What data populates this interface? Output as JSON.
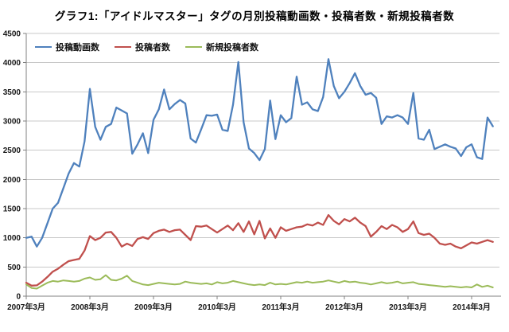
{
  "title": "グラフ1:「アイドルマスター」タグの月別投稿動画数・投稿者数・新規投稿者数",
  "colors": {
    "videos": "#4F81BD",
    "posters": "#C0504D",
    "new_posters": "#9BBB59",
    "grid": "#c8c8c8",
    "axis": "#808080",
    "text": "#171717"
  },
  "chart_data": {
    "type": "line",
    "title": "グラフ1:「アイドルマスター」タグの月別投稿動画数・投稿者数・新規投稿者数",
    "xlabel": "",
    "ylabel": "",
    "grid": true,
    "legend_position": "top-left",
    "ylim": [
      0,
      4500
    ],
    "y_tick_step": 500,
    "y_tick_labels": [
      "0",
      "500",
      "1000",
      "1500",
      "2000",
      "2500",
      "3000",
      "3500",
      "4000",
      "4500"
    ],
    "x_unit": "month",
    "x_start_month": "2007年3月",
    "x_tick_labels": [
      "2007年3月",
      "2008年3月",
      "2009年3月",
      "2010年3月",
      "2011年3月",
      "2012年3月",
      "2013年3月",
      "2014年3月"
    ],
    "x_tick_month_indices": [
      0,
      12,
      24,
      36,
      48,
      60,
      72,
      84
    ],
    "series": [
      {
        "name": "投稿動画数",
        "color": "#4F81BD",
        "values": [
          1000,
          1020,
          850,
          1000,
          1250,
          1500,
          1600,
          1850,
          2100,
          2280,
          2220,
          2650,
          3550,
          2900,
          2680,
          2900,
          2950,
          3230,
          3180,
          3130,
          2440,
          2600,
          2790,
          2450,
          3020,
          3200,
          3540,
          3200,
          3290,
          3360,
          3300,
          2700,
          2630,
          2860,
          3100,
          3090,
          3110,
          2850,
          2830,
          3280,
          4010,
          2980,
          2530,
          2450,
          2330,
          2520,
          3350,
          2690,
          3100,
          2980,
          3050,
          3760,
          3280,
          3320,
          3200,
          3170,
          3410,
          4060,
          3600,
          3390,
          3500,
          3650,
          3820,
          3600,
          3450,
          3480,
          3400,
          2950,
          3080,
          3060,
          3100,
          3060,
          2950,
          3480,
          2700,
          2680,
          2850,
          2520,
          2560,
          2600,
          2560,
          2530,
          2400,
          2550,
          2600,
          2380,
          2350,
          3060,
          2910
        ]
      },
      {
        "name": "投稿者数",
        "color": "#C0504D",
        "values": [
          230,
          180,
          185,
          250,
          330,
          420,
          470,
          540,
          600,
          620,
          640,
          780,
          1030,
          960,
          1000,
          1090,
          1100,
          1000,
          850,
          900,
          860,
          980,
          1010,
          980,
          1080,
          1120,
          1140,
          1100,
          1130,
          1140,
          1050,
          960,
          1200,
          1190,
          1210,
          1150,
          1090,
          1150,
          1210,
          1130,
          1250,
          1100,
          1280,
          1060,
          1290,
          990,
          1160,
          1000,
          1180,
          1120,
          1150,
          1180,
          1190,
          1230,
          1210,
          1260,
          1220,
          1390,
          1290,
          1230,
          1320,
          1280,
          1345,
          1260,
          1200,
          1020,
          1100,
          1200,
          1150,
          1220,
          1180,
          1100,
          1150,
          1280,
          1080,
          1050,
          1070,
          1000,
          900,
          880,
          900,
          850,
          820,
          870,
          920,
          900,
          930,
          960,
          930
        ]
      },
      {
        "name": "新規投稿者数",
        "color": "#9BBB59",
        "values": [
          200,
          140,
          130,
          180,
          230,
          260,
          250,
          270,
          260,
          250,
          260,
          300,
          320,
          280,
          290,
          360,
          280,
          270,
          300,
          350,
          260,
          230,
          200,
          190,
          210,
          230,
          220,
          210,
          200,
          210,
          250,
          230,
          220,
          210,
          220,
          200,
          240,
          220,
          230,
          260,
          240,
          220,
          200,
          190,
          200,
          190,
          230,
          200,
          210,
          200,
          220,
          240,
          230,
          250,
          230,
          240,
          250,
          270,
          250,
          230,
          260,
          240,
          250,
          230,
          220,
          200,
          220,
          240,
          220,
          230,
          250,
          220,
          230,
          240,
          210,
          200,
          190,
          180,
          170,
          160,
          170,
          160,
          150,
          160,
          150,
          200,
          160,
          180,
          150
        ]
      }
    ]
  }
}
